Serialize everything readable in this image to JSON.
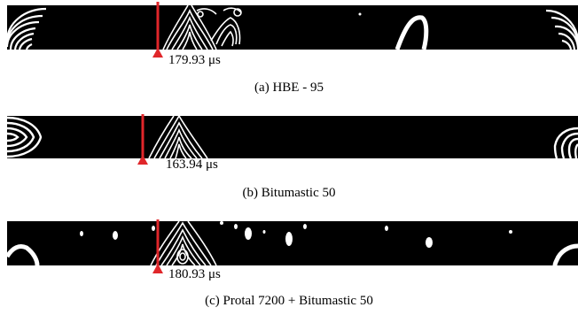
{
  "panels": [
    {
      "time": "179.93 μs",
      "caption": "(a) HBE - 95"
    },
    {
      "time": "163.94 μs",
      "caption": "(b) Bitumastic 50"
    },
    {
      "time": "180.93 μs",
      "caption": "(c) Protal 7200 + Bitumastic 50"
    }
  ],
  "colors": {
    "marker": "#e0262a",
    "fringe": "#ffffff",
    "background": "#000000"
  }
}
